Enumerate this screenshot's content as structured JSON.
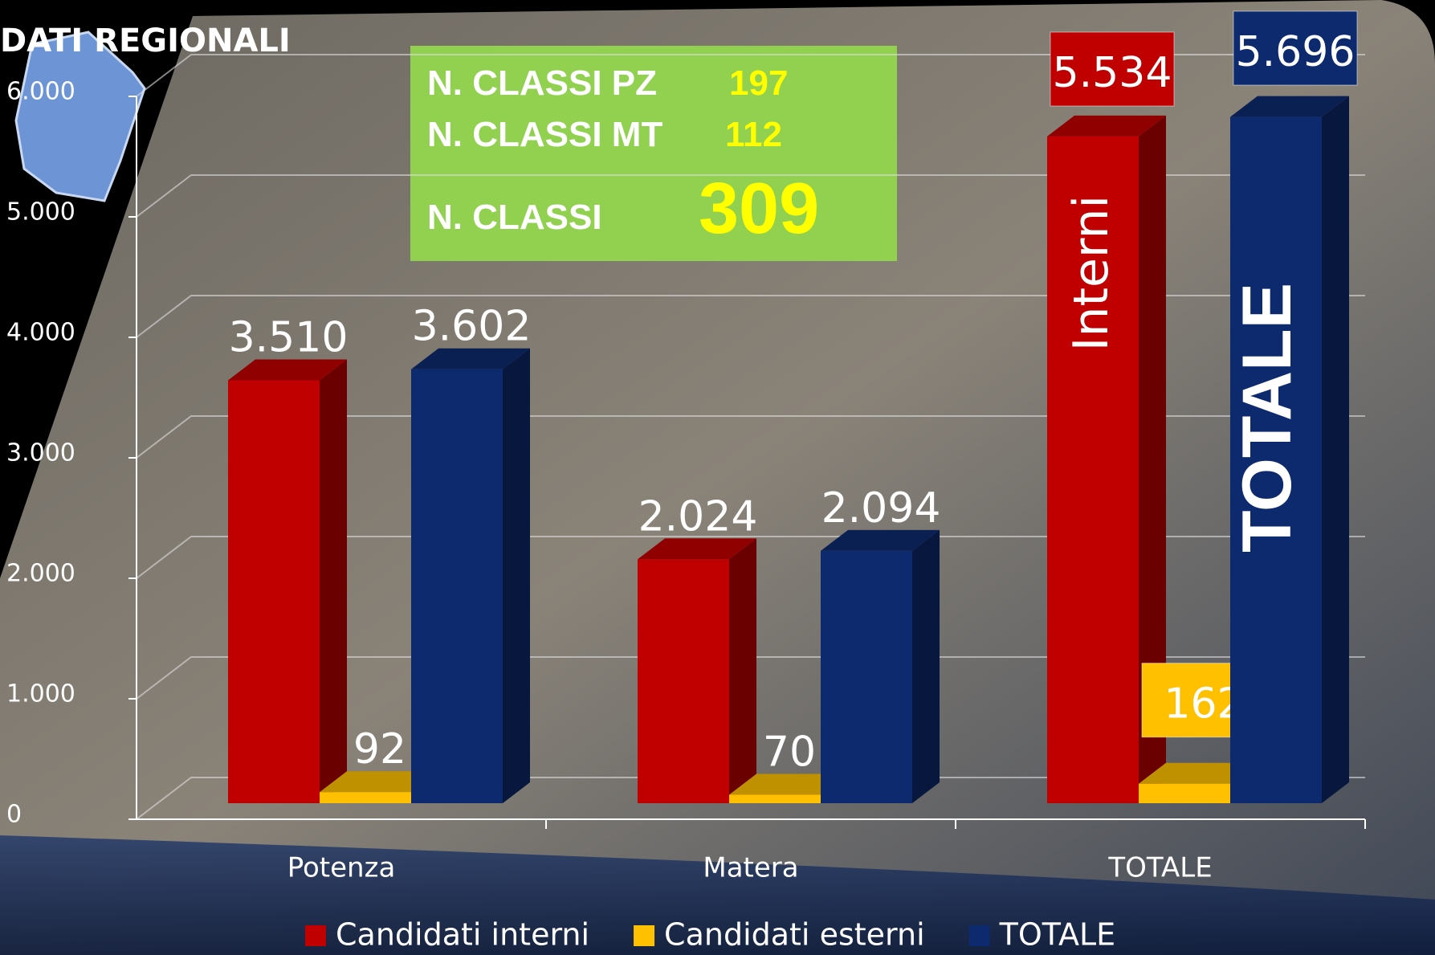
{
  "chart_data": {
    "type": "bar3d",
    "title": "DATI REGIONALI",
    "categories": [
      "Potenza",
      "Matera",
      "TOTALE"
    ],
    "series": [
      {
        "name": "Candidati interni",
        "color": "#c00000",
        "values": [
          3510,
          2024,
          5534
        ],
        "value_labels": [
          "3.510",
          "2.024",
          "5.534"
        ]
      },
      {
        "name": "Candidati esterni",
        "color": "#ffc000",
        "values": [
          92,
          70,
          162
        ]
      },
      {
        "name": "TOTALE",
        "color": "#0d2a6e",
        "values": [
          3602,
          2094,
          5696
        ],
        "value_labels": [
          "3.602",
          "2.094",
          "5.696"
        ]
      }
    ],
    "ylim": [
      0,
      6000
    ],
    "yticks": [
      {
        "value": 0,
        "label": "0"
      },
      {
        "value": 1000,
        "label": "1.000"
      },
      {
        "value": 2000,
        "label": "2.000"
      },
      {
        "value": 3000,
        "label": "3.000"
      },
      {
        "value": 4000,
        "label": "4.000"
      },
      {
        "value": 5000,
        "label": "5.000"
      },
      {
        "value": 6000,
        "label": "6.000"
      }
    ],
    "grid": true,
    "annotations": [
      "Interni",
      "TOTALE"
    ],
    "info_box": {
      "rows": [
        {
          "label": "N. CLASSI PZ",
          "value": "197"
        },
        {
          "label": "N. CLASSI MT",
          "value": "112"
        },
        {
          "label": "N. CLASSI",
          "value": "309"
        }
      ]
    }
  }
}
